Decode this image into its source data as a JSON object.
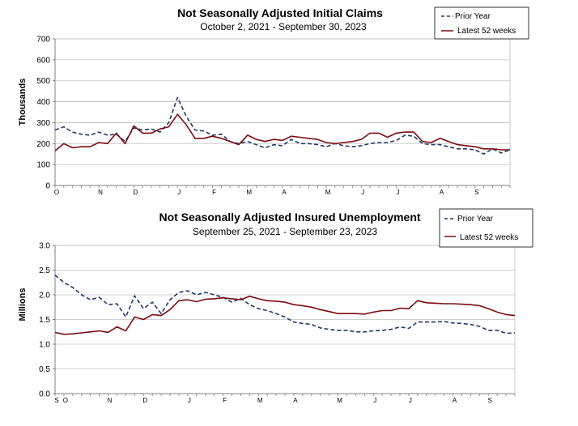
{
  "colors": {
    "prior": "#1f3a6b",
    "latest": "#7a0c12",
    "grid": "#c0c0c0",
    "axis": "#808080"
  },
  "chart_data": [
    {
      "type": "line",
      "title": "Not Seasonally Adjusted Initial Claims",
      "subtitle": "October 2, 2021  - September 30, 2023",
      "ylabel": "Thousands",
      "ylim": [
        0,
        700
      ],
      "yticks": [
        "0",
        "100",
        "200",
        "300",
        "400",
        "500",
        "600",
        "700"
      ],
      "ytick_values": [
        0,
        100,
        200,
        300,
        400,
        500,
        600,
        700
      ],
      "month_labels": [
        {
          "label": "O",
          "week": 0
        },
        {
          "label": "N",
          "week": 5
        },
        {
          "label": "D",
          "week": 9
        },
        {
          "label": "J",
          "week": 14
        },
        {
          "label": "F",
          "week": 18
        },
        {
          "label": "M",
          "week": 22
        },
        {
          "label": "A",
          "week": 26
        },
        {
          "label": "M",
          "week": 31
        },
        {
          "label": "J",
          "week": 35
        },
        {
          "label": "J",
          "week": 39
        },
        {
          "label": "A",
          "week": 44
        },
        {
          "label": "S",
          "week": 48
        }
      ],
      "weeks": 53,
      "legend": [
        "Prior Year",
        "Latest 52 weeks"
      ],
      "series": [
        {
          "name": "Prior Year",
          "style": "dashed",
          "values": [
            265,
            280,
            255,
            245,
            240,
            255,
            240,
            245,
            210,
            275,
            265,
            270,
            255,
            300,
            420,
            330,
            265,
            260,
            240,
            245,
            210,
            200,
            210,
            195,
            180,
            195,
            190,
            220,
            200,
            200,
            195,
            185,
            200,
            190,
            185,
            190,
            200,
            205,
            205,
            215,
            240,
            235,
            200,
            195,
            195,
            185,
            175,
            175,
            170,
            150,
            175,
            155,
            170
          ]
        },
        {
          "name": "Latest 52 weeks",
          "style": "solid",
          "values": [
            165,
            200,
            180,
            185,
            185,
            205,
            200,
            250,
            200,
            285,
            250,
            250,
            270,
            280,
            340,
            290,
            225,
            225,
            235,
            225,
            210,
            195,
            240,
            220,
            210,
            220,
            215,
            235,
            230,
            225,
            220,
            205,
            200,
            205,
            210,
            220,
            250,
            250,
            230,
            250,
            255,
            255,
            210,
            205,
            225,
            210,
            195,
            190,
            185,
            175,
            175,
            170,
            170
          ]
        }
      ]
    },
    {
      "type": "line",
      "title": "Not Seasonally Adjusted Insured Unemployment",
      "subtitle": "September 25, 2021  - September 23, 2023",
      "ylabel": "Millions",
      "ylim": [
        0,
        3
      ],
      "yticks": [
        "0.0",
        "0.5",
        "1.0",
        "1.5",
        "2.0",
        "2.5",
        "3.0"
      ],
      "ytick_values": [
        0,
        0.5,
        1.0,
        1.5,
        2.0,
        2.5,
        3.0
      ],
      "month_labels": [
        {
          "label": "S",
          "week": 0
        },
        {
          "label": "O",
          "week": 1
        },
        {
          "label": "N",
          "week": 6
        },
        {
          "label": "D",
          "week": 10
        },
        {
          "label": "J",
          "week": 15
        },
        {
          "label": "F",
          "week": 19
        },
        {
          "label": "M",
          "week": 23
        },
        {
          "label": "A",
          "week": 27
        },
        {
          "label": "M",
          "week": 32
        },
        {
          "label": "J",
          "week": 36
        },
        {
          "label": "J",
          "week": 40
        },
        {
          "label": "A",
          "week": 45
        },
        {
          "label": "S",
          "week": 49
        }
      ],
      "weeks": 53,
      "legend": [
        "Prior Year",
        "Latest 52 weeks"
      ],
      "series": [
        {
          "name": "Prior Year",
          "style": "dashed",
          "values": [
            2.4,
            2.25,
            2.15,
            2.0,
            1.9,
            1.95,
            1.8,
            1.82,
            1.55,
            1.98,
            1.72,
            1.85,
            1.62,
            1.9,
            2.05,
            2.08,
            2.0,
            2.05,
            2.0,
            1.95,
            1.85,
            1.93,
            1.8,
            1.72,
            1.68,
            1.62,
            1.55,
            1.45,
            1.42,
            1.4,
            1.33,
            1.3,
            1.28,
            1.28,
            1.25,
            1.25,
            1.27,
            1.28,
            1.3,
            1.35,
            1.32,
            1.45,
            1.45,
            1.45,
            1.46,
            1.43,
            1.42,
            1.4,
            1.36,
            1.28,
            1.28,
            1.22,
            1.23
          ]
        },
        {
          "name": "Latest 52 weeks",
          "style": "solid",
          "values": [
            1.24,
            1.2,
            1.21,
            1.23,
            1.25,
            1.27,
            1.24,
            1.35,
            1.27,
            1.55,
            1.5,
            1.6,
            1.58,
            1.7,
            1.88,
            1.9,
            1.86,
            1.91,
            1.92,
            1.94,
            1.92,
            1.9,
            1.97,
            1.92,
            1.88,
            1.87,
            1.85,
            1.8,
            1.78,
            1.75,
            1.7,
            1.66,
            1.62,
            1.62,
            1.62,
            1.61,
            1.65,
            1.68,
            1.68,
            1.73,
            1.72,
            1.88,
            1.84,
            1.83,
            1.82,
            1.82,
            1.81,
            1.8,
            1.78,
            1.72,
            1.65,
            1.6,
            1.58
          ]
        }
      ]
    }
  ]
}
